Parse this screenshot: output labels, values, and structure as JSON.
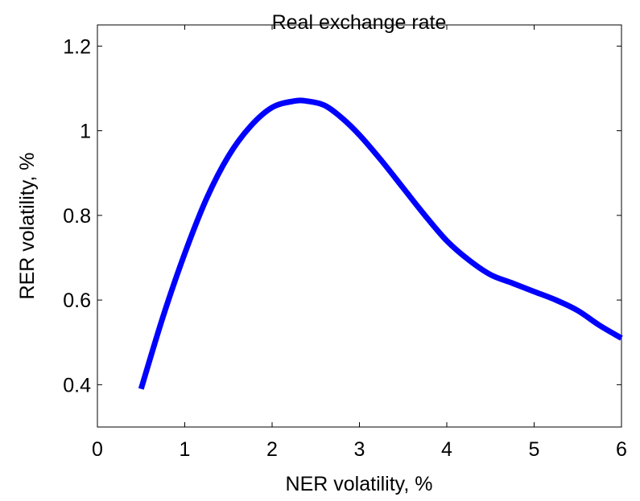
{
  "chart_data": {
    "type": "line",
    "title": "Real exchange rate",
    "xlabel": "NER volatility, %",
    "ylabel": "RER volatility, %",
    "xlim": [
      0,
      6
    ],
    "ylim": [
      0.3,
      1.25
    ],
    "xticks": [
      0,
      1,
      2,
      3,
      4,
      5,
      6
    ],
    "xtick_labels": [
      "0",
      "1",
      "2",
      "3",
      "4",
      "5",
      "6"
    ],
    "yticks": [
      0.4,
      0.6,
      0.8,
      1.0,
      1.2
    ],
    "ytick_labels": [
      "0.4",
      "0.6",
      "0.8",
      "1",
      "1.2"
    ],
    "grid": false,
    "series": [
      {
        "color": "#0000ff",
        "x": [
          0.5,
          0.75,
          1.0,
          1.25,
          1.5,
          1.75,
          2.0,
          2.25,
          2.4,
          2.6,
          2.8,
          3.0,
          3.25,
          3.5,
          3.75,
          4.0,
          4.25,
          4.5,
          4.75,
          5.0,
          5.25,
          5.5,
          5.75,
          6.0
        ],
        "y": [
          0.39,
          0.56,
          0.71,
          0.84,
          0.94,
          1.01,
          1.055,
          1.07,
          1.07,
          1.06,
          1.03,
          0.99,
          0.93,
          0.865,
          0.8,
          0.74,
          0.695,
          0.66,
          0.64,
          0.62,
          0.6,
          0.575,
          0.54,
          0.51
        ]
      }
    ]
  }
}
